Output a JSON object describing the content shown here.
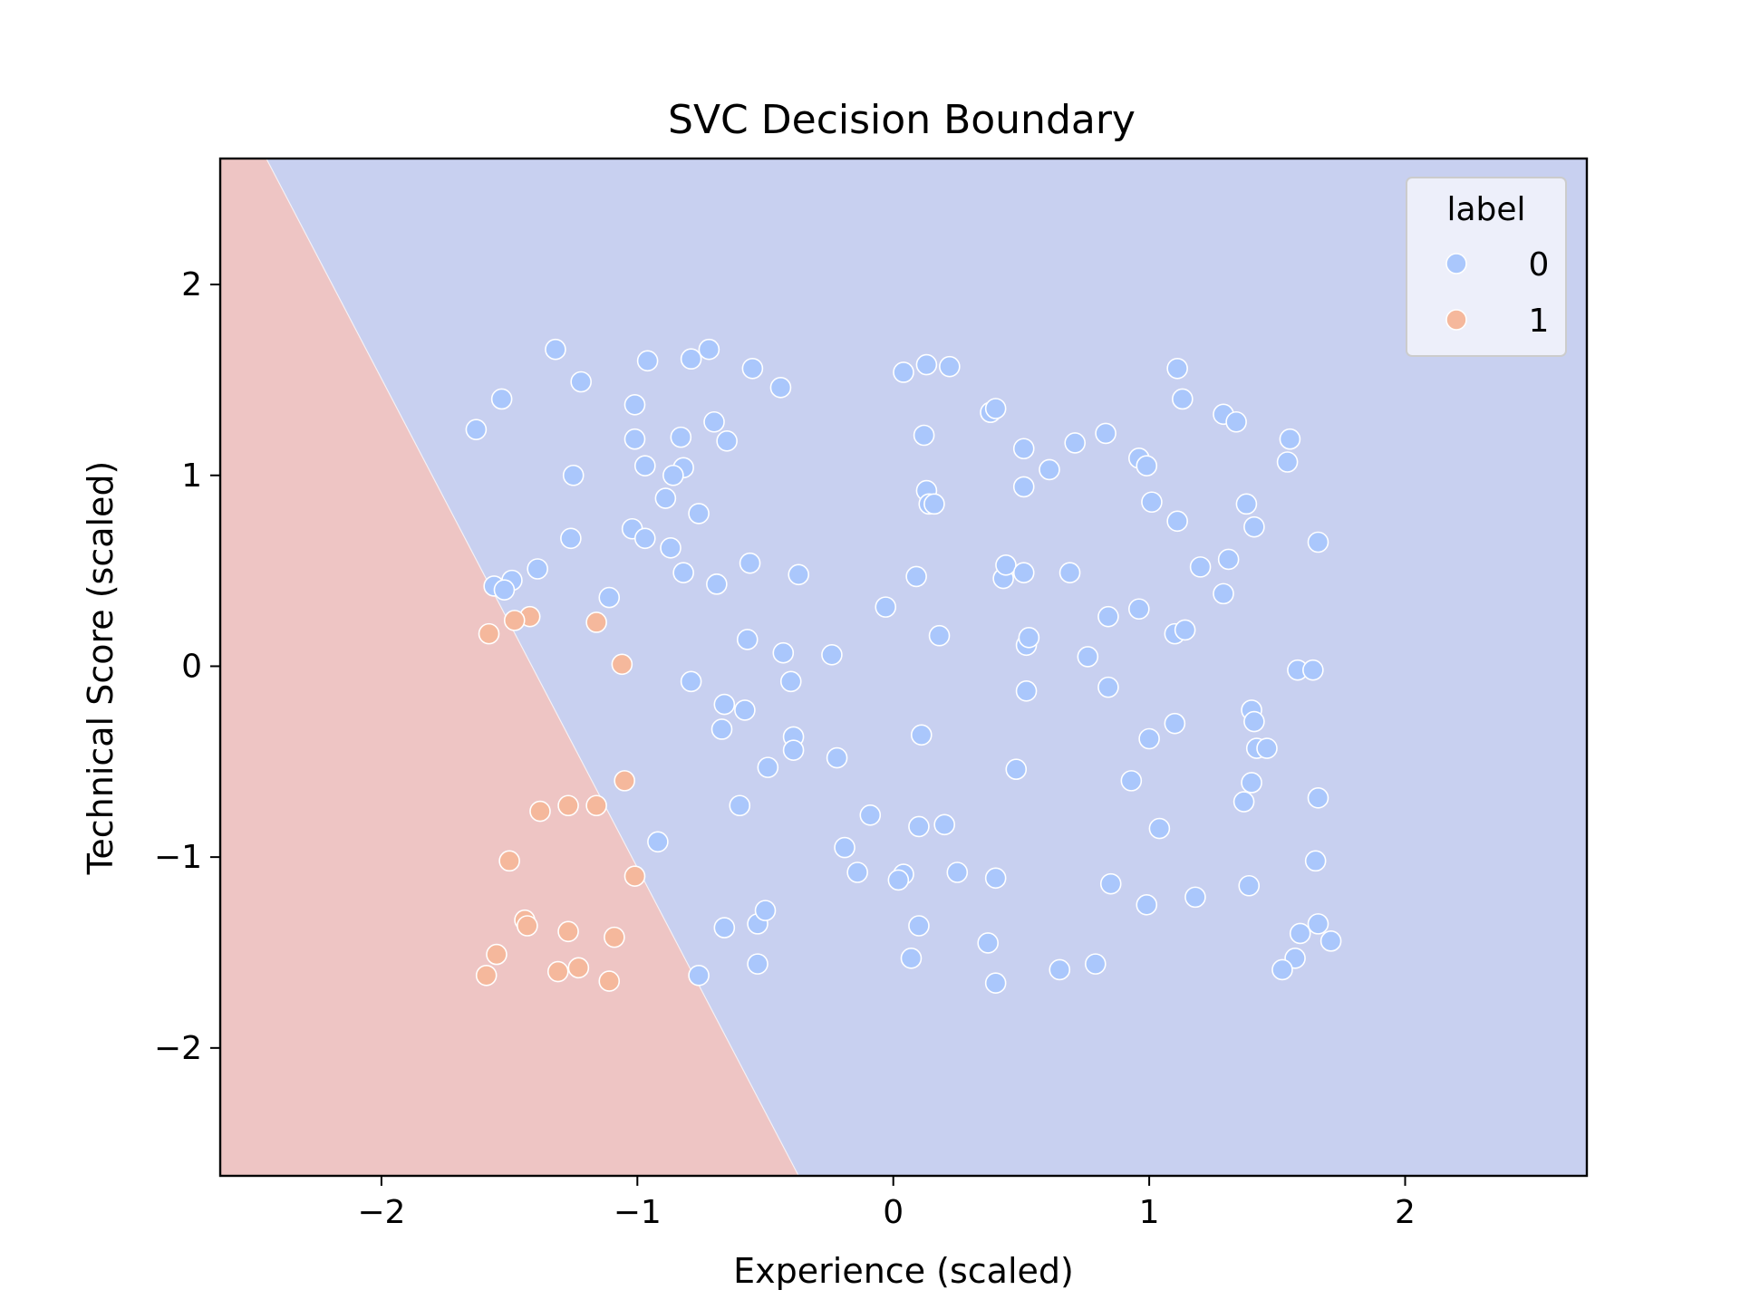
{
  "chart_data": {
    "type": "scatter",
    "title": "SVC Decision Boundary",
    "xlabel": "Experience (scaled)",
    "ylabel": "Technical Score (scaled)",
    "xlim": [
      -2.63,
      2.71
    ],
    "ylim": [
      -2.67,
      2.66
    ],
    "xticks": [
      -2,
      -1,
      0,
      1,
      2
    ],
    "yticks": [
      -2,
      -1,
      0,
      1,
      2
    ],
    "xtick_labels": [
      "−2",
      "−1",
      "0",
      "1",
      "2"
    ],
    "ytick_labels": [
      "−2",
      "−1",
      "0",
      "1",
      "2"
    ],
    "grid": false,
    "decision_boundary": {
      "points": [
        [
          -2.45,
          2.66
        ],
        [
          -0.37,
          -2.67
        ]
      ],
      "region_colors": {
        "0": "#c8d0f0",
        "1": "#eec5c4"
      }
    },
    "legend": {
      "title": "label",
      "placement": "top-right",
      "entries": [
        {
          "label": "0",
          "color": "#aac7fc"
        },
        {
          "label": "1",
          "color": "#f5b89c"
        }
      ]
    },
    "series": [
      {
        "name": "0",
        "color": "#aac7fc",
        "points": [
          [
            -1.32,
            1.66
          ],
          [
            -1.53,
            1.4
          ],
          [
            -1.63,
            1.24
          ],
          [
            -1.22,
            1.49
          ],
          [
            -0.96,
            1.6
          ],
          [
            -0.79,
            1.61
          ],
          [
            -0.72,
            1.66
          ],
          [
            -0.55,
            1.56
          ],
          [
            -0.44,
            1.46
          ],
          [
            -1.01,
            1.37
          ],
          [
            -1.01,
            1.19
          ],
          [
            -0.83,
            1.2
          ],
          [
            -0.7,
            1.28
          ],
          [
            -0.65,
            1.18
          ],
          [
            -0.97,
            1.05
          ],
          [
            -0.82,
            1.04
          ],
          [
            -0.86,
            1.0
          ],
          [
            -1.25,
            1.0
          ],
          [
            -0.89,
            0.88
          ],
          [
            -0.76,
            0.8
          ],
          [
            -1.02,
            0.72
          ],
          [
            -0.97,
            0.67
          ],
          [
            -1.26,
            0.67
          ],
          [
            -0.87,
            0.62
          ],
          [
            -0.82,
            0.49
          ],
          [
            -0.69,
            0.43
          ],
          [
            -0.56,
            0.54
          ],
          [
            -0.37,
            0.48
          ],
          [
            -1.39,
            0.51
          ],
          [
            -1.49,
            0.45
          ],
          [
            -1.56,
            0.42
          ],
          [
            -1.52,
            0.4
          ],
          [
            -1.11,
            0.36
          ],
          [
            -0.57,
            0.14
          ],
          [
            -0.43,
            0.07
          ],
          [
            -0.79,
            -0.08
          ],
          [
            -0.4,
            -0.08
          ],
          [
            -0.66,
            -0.2
          ],
          [
            -0.58,
            -0.23
          ],
          [
            -0.67,
            -0.33
          ],
          [
            -0.39,
            -0.37
          ],
          [
            -0.39,
            -0.44
          ],
          [
            -0.49,
            -0.53
          ],
          [
            -0.6,
            -0.73
          ],
          [
            -0.92,
            -0.92
          ],
          [
            -0.66,
            -1.37
          ],
          [
            -0.53,
            -1.35
          ],
          [
            -0.5,
            -1.28
          ],
          [
            -0.53,
            -1.56
          ],
          [
            -0.76,
            -1.62
          ],
          [
            -0.24,
            0.06
          ],
          [
            -0.22,
            -0.48
          ],
          [
            -0.09,
            -0.78
          ],
          [
            -0.19,
            -0.95
          ],
          [
            -0.14,
            -1.08
          ],
          [
            0.04,
            -1.09
          ],
          [
            0.02,
            -1.12
          ],
          [
            0.1,
            -1.36
          ],
          [
            0.07,
            -1.53
          ],
          [
            0.1,
            -0.84
          ],
          [
            0.2,
            -0.83
          ],
          [
            0.25,
            -1.08
          ],
          [
            0.37,
            -1.45
          ],
          [
            0.4,
            -1.11
          ],
          [
            0.4,
            -1.66
          ],
          [
            0.65,
            -1.59
          ],
          [
            0.79,
            -1.56
          ],
          [
            0.85,
            -1.14
          ],
          [
            0.99,
            -1.25
          ],
          [
            1.18,
            -1.21
          ],
          [
            1.04,
            -0.85
          ],
          [
            0.93,
            -0.6
          ],
          [
            0.48,
            -0.54
          ],
          [
            0.11,
            -0.36
          ],
          [
            1.0,
            -0.38
          ],
          [
            1.1,
            -0.3
          ],
          [
            0.52,
            -0.13
          ],
          [
            0.84,
            -0.11
          ],
          [
            0.52,
            0.11
          ],
          [
            0.53,
            0.15
          ],
          [
            0.76,
            0.05
          ],
          [
            0.84,
            0.26
          ],
          [
            0.96,
            0.3
          ],
          [
            1.1,
            0.17
          ],
          [
            1.14,
            0.19
          ],
          [
            -0.03,
            0.31
          ],
          [
            0.09,
            0.47
          ],
          [
            0.18,
            0.16
          ],
          [
            0.43,
            0.46
          ],
          [
            0.44,
            0.53
          ],
          [
            0.51,
            0.49
          ],
          [
            0.69,
            0.49
          ],
          [
            1.2,
            0.52
          ],
          [
            1.29,
            0.38
          ],
          [
            1.31,
            0.56
          ],
          [
            0.04,
            1.54
          ],
          [
            0.13,
            1.58
          ],
          [
            0.22,
            1.57
          ],
          [
            0.38,
            1.33
          ],
          [
            0.4,
            1.35
          ],
          [
            0.12,
            1.21
          ],
          [
            0.13,
            0.92
          ],
          [
            0.14,
            0.85
          ],
          [
            0.16,
            0.85
          ],
          [
            0.51,
            1.14
          ],
          [
            0.51,
            0.94
          ],
          [
            0.61,
            1.03
          ],
          [
            0.71,
            1.17
          ],
          [
            0.83,
            1.22
          ],
          [
            0.96,
            1.09
          ],
          [
            0.99,
            1.05
          ],
          [
            1.01,
            0.86
          ],
          [
            1.11,
            0.76
          ],
          [
            1.11,
            1.56
          ],
          [
            1.13,
            1.4
          ],
          [
            1.29,
            1.32
          ],
          [
            1.34,
            1.28
          ],
          [
            1.38,
            0.85
          ],
          [
            1.41,
            0.73
          ],
          [
            1.55,
            1.19
          ],
          [
            1.54,
            1.07
          ],
          [
            1.66,
            0.65
          ],
          [
            1.58,
            -0.02
          ],
          [
            1.64,
            -0.02
          ],
          [
            1.4,
            -0.23
          ],
          [
            1.41,
            -0.29
          ],
          [
            1.42,
            -0.43
          ],
          [
            1.46,
            -0.43
          ],
          [
            1.4,
            -0.61
          ],
          [
            1.37,
            -0.71
          ],
          [
            1.66,
            -0.69
          ],
          [
            1.65,
            -1.02
          ],
          [
            1.39,
            -1.15
          ],
          [
            1.66,
            -1.35
          ],
          [
            1.71,
            -1.44
          ],
          [
            1.59,
            -1.4
          ],
          [
            1.57,
            -1.53
          ],
          [
            1.52,
            -1.59
          ]
        ]
      },
      {
        "name": "1",
        "color": "#f5b89c",
        "points": [
          [
            -1.42,
            0.26
          ],
          [
            -1.48,
            0.24
          ],
          [
            -1.58,
            0.17
          ],
          [
            -1.16,
            0.23
          ],
          [
            -1.06,
            0.01
          ],
          [
            -1.05,
            -0.6
          ],
          [
            -1.38,
            -0.76
          ],
          [
            -1.27,
            -0.73
          ],
          [
            -1.16,
            -0.73
          ],
          [
            -1.5,
            -1.02
          ],
          [
            -1.01,
            -1.1
          ],
          [
            -1.44,
            -1.33
          ],
          [
            -1.43,
            -1.36
          ],
          [
            -1.27,
            -1.39
          ],
          [
            -1.09,
            -1.42
          ],
          [
            -1.55,
            -1.51
          ],
          [
            -1.59,
            -1.62
          ],
          [
            -1.31,
            -1.6
          ],
          [
            -1.23,
            -1.58
          ],
          [
            -1.11,
            -1.65
          ]
        ]
      }
    ]
  }
}
